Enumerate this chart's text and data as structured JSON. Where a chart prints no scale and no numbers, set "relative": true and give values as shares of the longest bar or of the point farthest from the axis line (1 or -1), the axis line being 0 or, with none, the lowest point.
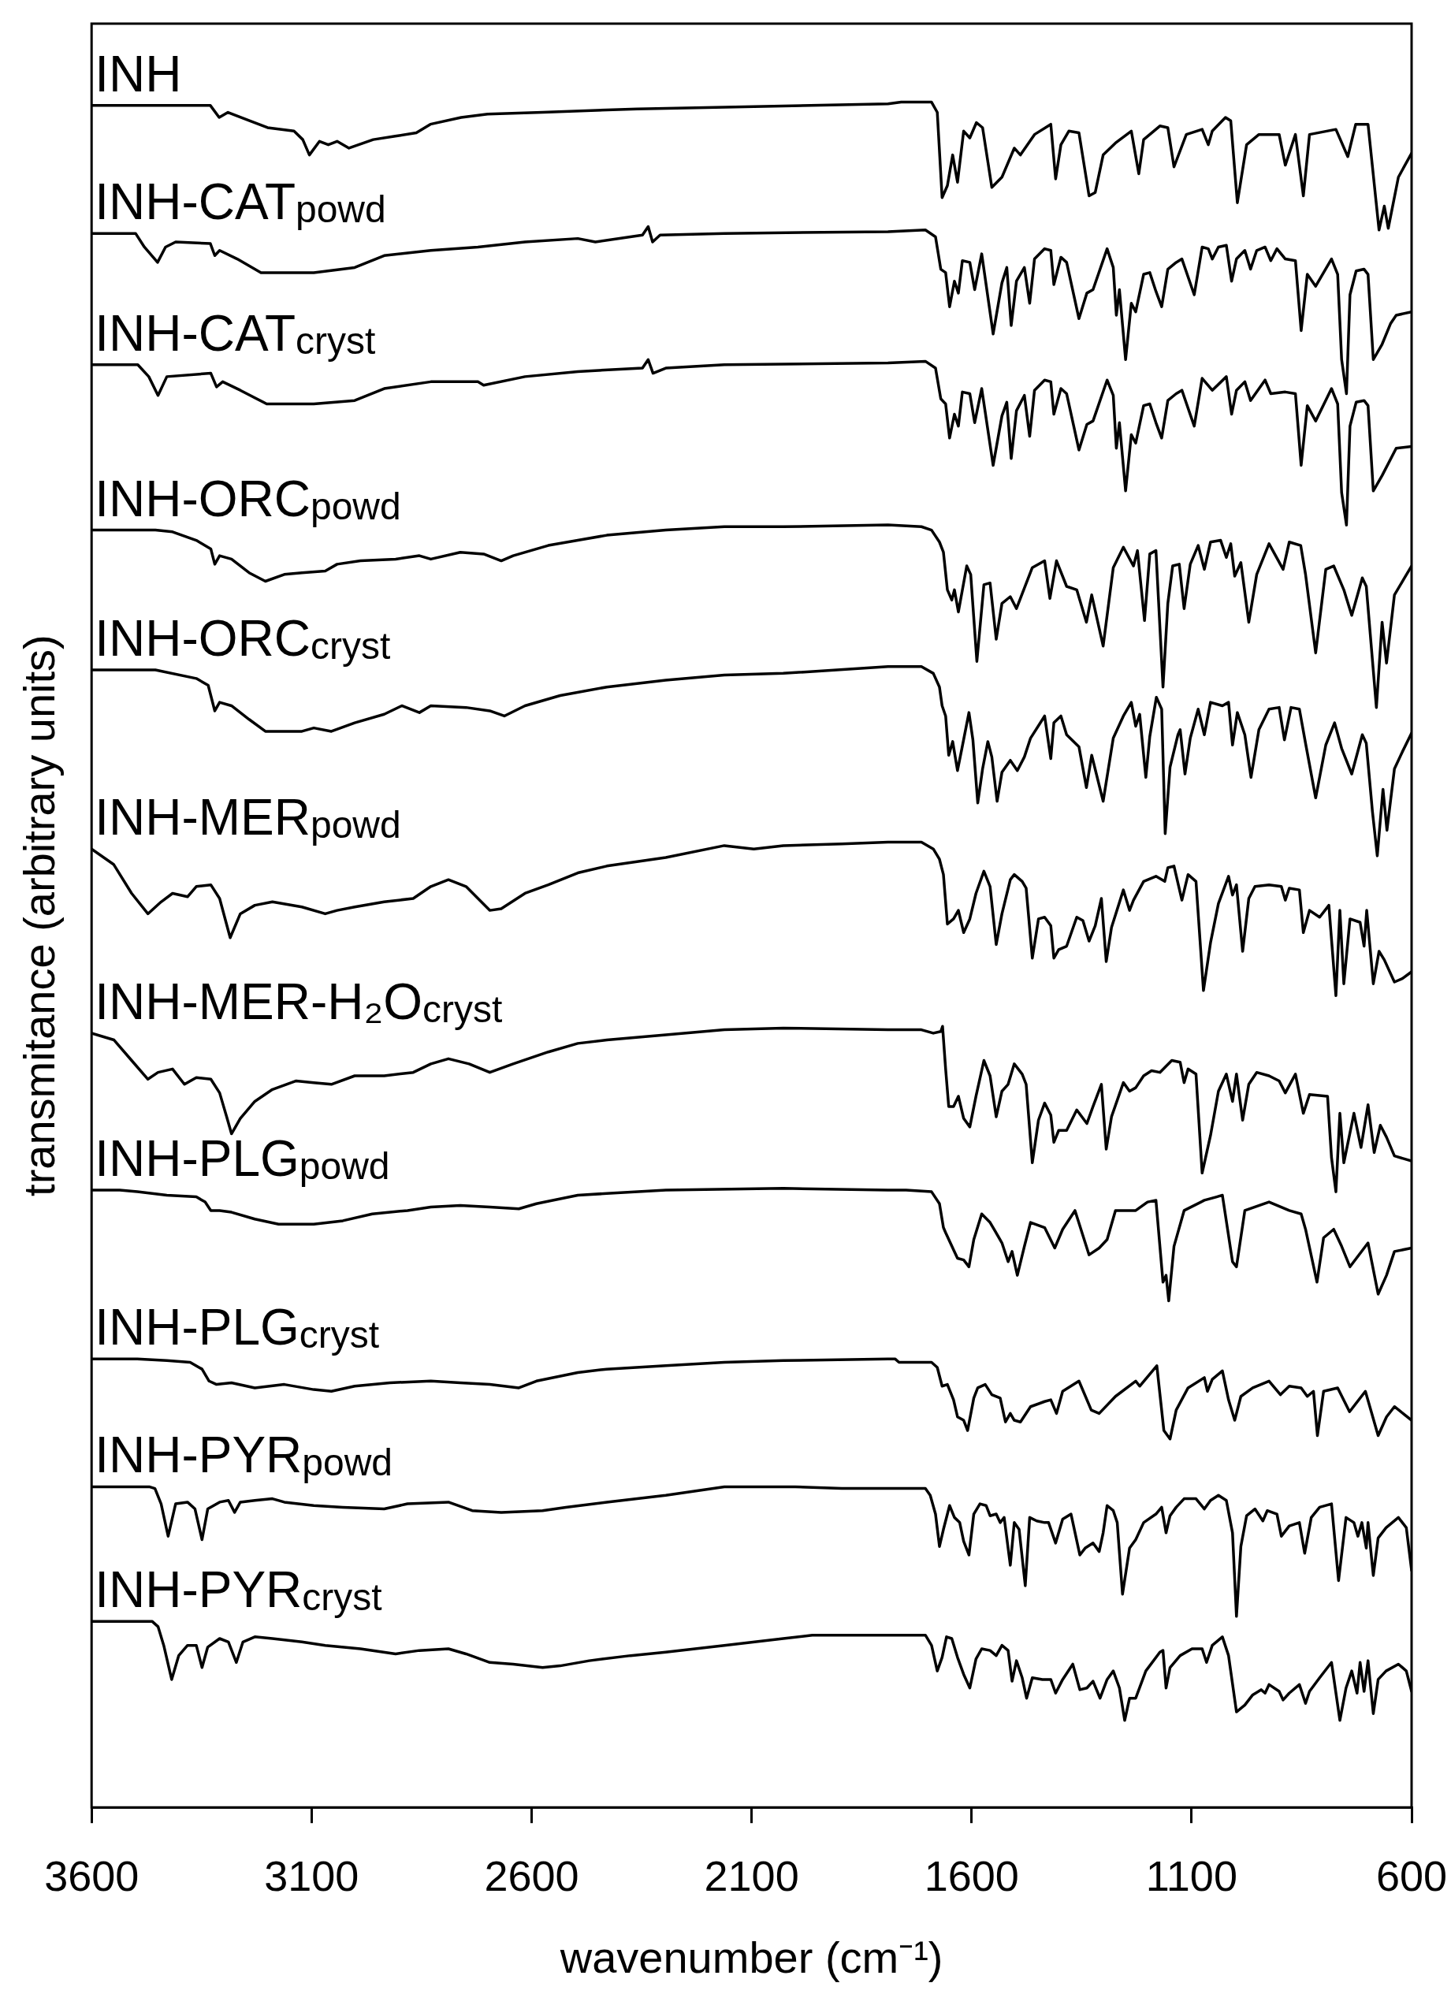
{
  "chart_data": {
    "type": "line",
    "xlabel": "wavenumber (cm⁻¹)",
    "ylabel": "transmitance (arbitrary units)",
    "xlim": [
      3600,
      600
    ],
    "xticks": [
      3600,
      3100,
      2600,
      2100,
      1600,
      1100,
      600
    ],
    "relative": true,
    "line_style": "solid",
    "series": [
      {
        "name": "INH",
        "color": "#000000",
        "x": [
          3600,
          3330,
          3310,
          3290,
          3240,
          3200,
          3140,
          3120,
          3105,
          3082,
          3062,
          3042,
          3015,
          2960,
          2910,
          2862,
          2830,
          2760,
          2700,
          2575,
          2360,
          2160,
          1790,
          1760,
          1691,
          1678,
          1667,
          1655,
          1643,
          1632,
          1618,
          1604,
          1589,
          1575,
          1554,
          1531,
          1503,
          1489,
          1457,
          1420,
          1409,
          1397,
          1379,
          1356,
          1333,
          1319,
          1301,
          1273,
          1237,
          1220,
          1209,
          1172,
          1154,
          1140,
          1112,
          1076,
          1062,
          1053,
          1023,
          1011,
          996,
          975,
          947,
          901,
          887,
          864,
          846,
          832,
          772,
          745,
          727,
          699,
          674,
          662,
          653,
          630,
          600
        ],
        "values": [
          0.998,
          0.998,
          0.991,
          0.994,
          0.989,
          0.985,
          0.983,
          0.978,
          0.969,
          0.977,
          0.975,
          0.977,
          0.973,
          0.978,
          0.98,
          0.982,
          0.987,
          0.991,
          0.993,
          0.994,
          0.996,
          0.997,
          0.999,
          1,
          1,
          0.994,
          0.944,
          0.951,
          0.969,
          0.953,
          0.983,
          0.979,
          0.988,
          0.985,
          0.95,
          0.956,
          0.973,
          0.969,
          0.981,
          0.987,
          0.955,
          0.975,
          0.983,
          0.982,
          0.945,
          0.947,
          0.969,
          0.976,
          0.983,
          0.958,
          0.978,
          0.986,
          0.985,
          0.962,
          0.981,
          0.984,
          0.975,
          0.983,
          0.991,
          0.989,
          0.941,
          0.975,
          0.981,
          0.981,
          0.963,
          0.981,
          0.945,
          0.981,
          0.984,
          0.968,
          0.987,
          0.987,
          0.925,
          0.939,
          0.926,
          0.956,
          0.97
        ]
      },
      {
        "name": "INH-CAT$_{powd}$",
        "color": "#000000",
        "x": [
          3600,
          3500,
          3480,
          3450,
          3432,
          3409,
          3330,
          3320,
          3309,
          3269,
          3215,
          3095,
          3002,
          2935,
          2829,
          2722,
          2615,
          2495,
          2455,
          2348,
          2335,
          2325,
          2308,
          2162,
          1790,
          1705,
          1682,
          1670,
          1659,
          1650,
          1639,
          1630,
          1621,
          1604,
          1593,
          1577,
          1551,
          1531,
          1520,
          1510,
          1498,
          1480,
          1468,
          1457,
          1434,
          1420,
          1413,
          1397,
          1384,
          1356,
          1338,
          1324,
          1292,
          1278,
          1271,
          1264,
          1250,
          1237,
          1227,
          1209,
          1195,
          1181,
          1168,
          1154,
          1135,
          1122,
          1094,
          1076,
          1062,
          1053,
          1039,
          1021,
          1009,
          998,
          979,
          966,
          952,
          933,
          920,
          906,
          887,
          864,
          851,
          837,
          818,
          782,
          768,
          759,
          748,
          740,
          726,
          708,
          699,
          687,
          667,
          648,
          635,
          600
        ],
        "values": [
          0.923,
          0.923,
          0.915,
          0.906,
          0.915,
          0.918,
          0.917,
          0.91,
          0.913,
          0.908,
          0.9,
          0.9,
          0.903,
          0.91,
          0.913,
          0.915,
          0.918,
          0.92,
          0.918,
          0.922,
          0.927,
          0.918,
          0.922,
          0.923,
          0.924,
          0.925,
          0.921,
          0.902,
          0.9,
          0.88,
          0.895,
          0.888,
          0.907,
          0.906,
          0.89,
          0.911,
          0.864,
          0.894,
          0.903,
          0.869,
          0.895,
          0.903,
          0.882,
          0.908,
          0.914,
          0.913,
          0.893,
          0.909,
          0.906,
          0.873,
          0.888,
          0.89,
          0.914,
          0.903,
          0.875,
          0.89,
          0.849,
          0.882,
          0.877,
          0.899,
          0.9,
          0.889,
          0.88,
          0.902,
          0.906,
          0.908,
          0.887,
          0.915,
          0.914,
          0.908,
          0.915,
          0.916,
          0.895,
          0.908,
          0.913,
          0.902,
          0.913,
          0.915,
          0.907,
          0.914,
          0.908,
          0.907,
          0.866,
          0.899,
          0.892,
          0.908,
          0.899,
          0.849,
          0.829,
          0.887,
          0.901,
          0.902,
          0.899,
          0.849,
          0.858,
          0.87,
          0.875,
          0.877
        ]
      },
      {
        "name": "INH-CAT$_{cryst}$",
        "color": "#000000",
        "x": [
          3600,
          3495,
          3470,
          3449,
          3429,
          3329,
          3316,
          3302,
          3262,
          3202,
          3095,
          3002,
          2935,
          2829,
          2722,
          2709,
          2615,
          2495,
          2348,
          2335,
          2324,
          2295,
          2162,
          1790,
          1705,
          1682,
          1670,
          1659,
          1650,
          1639,
          1630,
          1621,
          1604,
          1593,
          1577,
          1551,
          1531,
          1520,
          1510,
          1498,
          1480,
          1468,
          1457,
          1434,
          1420,
          1413,
          1397,
          1384,
          1356,
          1338,
          1324,
          1292,
          1278,
          1271,
          1264,
          1250,
          1237,
          1227,
          1209,
          1195,
          1181,
          1168,
          1154,
          1135,
          1122,
          1094,
          1076,
          1053,
          1021,
          1009,
          998,
          979,
          966,
          933,
          920,
          887,
          864,
          851,
          837,
          818,
          782,
          768,
          759,
          748,
          740,
          726,
          708,
          699,
          687,
          667,
          635,
          600
        ],
        "values": [
          0.846,
          0.846,
          0.839,
          0.828,
          0.839,
          0.841,
          0.833,
          0.836,
          0.831,
          0.823,
          0.823,
          0.825,
          0.832,
          0.836,
          0.836,
          0.834,
          0.839,
          0.842,
          0.844,
          0.849,
          0.841,
          0.844,
          0.846,
          0.847,
          0.848,
          0.844,
          0.826,
          0.823,
          0.803,
          0.817,
          0.81,
          0.83,
          0.829,
          0.812,
          0.832,
          0.787,
          0.816,
          0.824,
          0.791,
          0.819,
          0.828,
          0.804,
          0.831,
          0.837,
          0.836,
          0.817,
          0.832,
          0.829,
          0.796,
          0.811,
          0.813,
          0.837,
          0.828,
          0.797,
          0.812,
          0.772,
          0.805,
          0.8,
          0.822,
          0.823,
          0.812,
          0.803,
          0.825,
          0.829,
          0.831,
          0.81,
          0.838,
          0.831,
          0.839,
          0.817,
          0.831,
          0.836,
          0.825,
          0.837,
          0.829,
          0.83,
          0.829,
          0.787,
          0.822,
          0.813,
          0.832,
          0.823,
          0.771,
          0.752,
          0.81,
          0.824,
          0.825,
          0.822,
          0.772,
          0.781,
          0.797,
          0.798
        ]
      },
      {
        "name": "INH-ORC$_{powd}$",
        "color": "#000000",
        "x": [
          3600,
          3455,
          3416,
          3362,
          3329,
          3320,
          3309,
          3282,
          3242,
          3205,
          3162,
          3122,
          3069,
          3042,
          2989,
          2909,
          2855,
          2829,
          2762,
          2709,
          2669,
          2642,
          2562,
          2495,
          2429,
          2295,
          2162,
          2028,
          1790,
          1714,
          1691,
          1673,
          1664,
          1655,
          1645,
          1639,
          1630,
          1611,
          1602,
          1588,
          1572,
          1558,
          1544,
          1531,
          1512,
          1498,
          1480,
          1462,
          1434,
          1422,
          1407,
          1384,
          1361,
          1339,
          1327,
          1301,
          1278,
          1255,
          1232,
          1223,
          1207,
          1195,
          1181,
          1165,
          1154,
          1143,
          1128,
          1117,
          1103,
          1085,
          1071,
          1057,
          1034,
          1021,
          1011,
          1002,
          988,
          970,
          952,
          924,
          892,
          878,
          852,
          841,
          818,
          795,
          777,
          754,
          736,
          712,
          703,
          680,
          667,
          657,
          639,
          616,
          600
        ],
        "values": [
          0.749,
          0.749,
          0.748,
          0.743,
          0.738,
          0.729,
          0.734,
          0.732,
          0.724,
          0.719,
          0.723,
          0.724,
          0.725,
          0.729,
          0.731,
          0.732,
          0.734,
          0.732,
          0.736,
          0.735,
          0.731,
          0.734,
          0.74,
          0.743,
          0.746,
          0.749,
          0.751,
          0.751,
          0.752,
          0.751,
          0.749,
          0.742,
          0.736,
          0.714,
          0.708,
          0.714,
          0.701,
          0.728,
          0.723,
          0.672,
          0.717,
          0.718,
          0.685,
          0.706,
          0.71,
          0.703,
          0.715,
          0.727,
          0.731,
          0.709,
          0.731,
          0.716,
          0.714,
          0.695,
          0.711,
          0.681,
          0.727,
          0.739,
          0.728,
          0.737,
          0.696,
          0.735,
          0.737,
          0.657,
          0.706,
          0.728,
          0.729,
          0.703,
          0.729,
          0.74,
          0.726,
          0.742,
          0.743,
          0.733,
          0.741,
          0.722,
          0.73,
          0.695,
          0.723,
          0.741,
          0.726,
          0.742,
          0.74,
          0.723,
          0.677,
          0.726,
          0.728,
          0.714,
          0.699,
          0.721,
          0.716,
          0.645,
          0.695,
          0.671,
          0.711,
          0.721,
          0.728
        ]
      },
      {
        "name": "INH-ORC$_{cryst}$",
        "color": "#000000",
        "x": [
          3600,
          3455,
          3362,
          3335,
          3320,
          3309,
          3282,
          3242,
          3205,
          3122,
          3095,
          3055,
          3002,
          2935,
          2895,
          2855,
          2829,
          2749,
          2695,
          2662,
          2615,
          2535,
          2429,
          2295,
          2162,
          2028,
          1790,
          1714,
          1687,
          1673,
          1667,
          1659,
          1652,
          1643,
          1632,
          1622,
          1606,
          1597,
          1586,
          1575,
          1563,
          1554,
          1542,
          1531,
          1512,
          1496,
          1480,
          1466,
          1434,
          1420,
          1413,
          1397,
          1384,
          1356,
          1339,
          1327,
          1301,
          1278,
          1255,
          1237,
          1227,
          1218,
          1204,
          1195,
          1180,
          1168,
          1160,
          1149,
          1131,
          1126,
          1115,
          1103,
          1085,
          1071,
          1057,
          1030,
          1016,
          1007,
          996,
          979,
          965,
          947,
          924,
          901,
          889,
          874,
          855,
          841,
          818,
          795,
          775,
          759,
          736,
          712,
          703,
          689,
          678,
          665,
          656,
          639,
          621,
          600
        ],
        "values": [
          0.667,
          0.667,
          0.662,
          0.658,
          0.643,
          0.648,
          0.646,
          0.638,
          0.631,
          0.631,
          0.633,
          0.631,
          0.636,
          0.641,
          0.646,
          0.642,
          0.646,
          0.645,
          0.643,
          0.64,
          0.646,
          0.652,
          0.657,
          0.661,
          0.664,
          0.665,
          0.669,
          0.669,
          0.665,
          0.657,
          0.646,
          0.64,
          0.617,
          0.625,
          0.608,
          0.621,
          0.642,
          0.626,
          0.589,
          0.609,
          0.625,
          0.616,
          0.59,
          0.607,
          0.614,
          0.608,
          0.616,
          0.627,
          0.64,
          0.615,
          0.636,
          0.64,
          0.629,
          0.622,
          0.598,
          0.617,
          0.59,
          0.627,
          0.64,
          0.648,
          0.634,
          0.641,
          0.604,
          0.628,
          0.651,
          0.644,
          0.571,
          0.61,
          0.629,
          0.632,
          0.606,
          0.627,
          0.644,
          0.629,
          0.648,
          0.646,
          0.648,
          0.623,
          0.642,
          0.629,
          0.604,
          0.632,
          0.644,
          0.645,
          0.626,
          0.645,
          0.644,
          0.624,
          0.592,
          0.623,
          0.636,
          0.621,
          0.606,
          0.629,
          0.624,
          0.584,
          0.558,
          0.597,
          0.573,
          0.609,
          0.619,
          0.63
        ]
      },
      {
        "name": "INH-MER$_{powd}$",
        "color": "#000000",
        "x": [
          3600,
          3550,
          3509,
          3472,
          3442,
          3416,
          3382,
          3362,
          3329,
          3309,
          3285,
          3262,
          3229,
          3189,
          3122,
          3069,
          3042,
          3002,
          2935,
          2869,
          2829,
          2789,
          2749,
          2695,
          2669,
          2615,
          2562,
          2495,
          2429,
          2295,
          2162,
          2095,
          2028,
          1895,
          1790,
          1714,
          1687,
          1673,
          1664,
          1655,
          1641,
          1630,
          1618,
          1604,
          1590,
          1572,
          1558,
          1544,
          1531,
          1512,
          1503,
          1485,
          1476,
          1462,
          1448,
          1434,
          1420,
          1413,
          1402,
          1384,
          1361,
          1347,
          1333,
          1319,
          1305,
          1294,
          1282,
          1255,
          1241,
          1232,
          1209,
          1181,
          1161,
          1154,
          1140,
          1122,
          1108,
          1090,
          1073,
          1057,
          1039,
          1016,
          1007,
          998,
          984,
          970,
          956,
          924,
          896,
          887,
          878,
          855,
          846,
          832,
          809,
          788,
          782,
          772,
          763,
          754,
          740,
          717,
          708,
          702,
          687,
          674,
          662,
          639,
          621,
          600
        ],
        "values": [
          0.562,
          0.553,
          0.536,
          0.524,
          0.531,
          0.536,
          0.534,
          0.54,
          0.541,
          0.533,
          0.51,
          0.524,
          0.529,
          0.531,
          0.528,
          0.524,
          0.526,
          0.528,
          0.531,
          0.533,
          0.54,
          0.544,
          0.54,
          0.526,
          0.527,
          0.536,
          0.541,
          0.548,
          0.552,
          0.557,
          0.564,
          0.562,
          0.564,
          0.565,
          0.566,
          0.566,
          0.562,
          0.556,
          0.547,
          0.518,
          0.521,
          0.526,
          0.513,
          0.521,
          0.536,
          0.549,
          0.54,
          0.506,
          0.524,
          0.544,
          0.547,
          0.543,
          0.539,
          0.498,
          0.521,
          0.522,
          0.517,
          0.498,
          0.503,
          0.505,
          0.522,
          0.52,
          0.508,
          0.517,
          0.533,
          0.496,
          0.516,
          0.538,
          0.526,
          0.532,
          0.543,
          0.546,
          0.543,
          0.551,
          0.552,
          0.532,
          0.547,
          0.543,
          0.479,
          0.507,
          0.53,
          0.546,
          0.535,
          0.541,
          0.502,
          0.533,
          0.54,
          0.541,
          0.54,
          0.532,
          0.539,
          0.538,
          0.513,
          0.526,
          0.522,
          0.529,
          0.509,
          0.476,
          0.526,
          0.483,
          0.521,
          0.519,
          0.505,
          0.526,
          0.483,
          0.502,
          0.497,
          0.484,
          0.486,
          0.49
        ]
      },
      {
        "name": "INH-MER-H₂O$_{cryst}$",
        "color": "#000000",
        "x": [
          3600,
          3549,
          3509,
          3472,
          3449,
          3416,
          3389,
          3362,
          3329,
          3309,
          3293,
          3282,
          3262,
          3229,
          3189,
          3135,
          3095,
          3055,
          3002,
          2935,
          2869,
          2829,
          2789,
          2742,
          2695,
          2642,
          2562,
          2495,
          2429,
          2295,
          2162,
          2028,
          1790,
          1714,
          1687,
          1670,
          1666,
          1659,
          1652,
          1641,
          1630,
          1618,
          1604,
          1590,
          1572,
          1558,
          1544,
          1531,
          1517,
          1503,
          1485,
          1476,
          1462,
          1448,
          1434,
          1420,
          1413,
          1402,
          1384,
          1361,
          1338,
          1324,
          1305,
          1294,
          1282,
          1255,
          1241,
          1227,
          1209,
          1191,
          1172,
          1145,
          1126,
          1117,
          1108,
          1090,
          1076,
          1057,
          1039,
          1021,
          1007,
          998,
          984,
          970,
          952,
          924,
          901,
          887,
          864,
          846,
          832,
          791,
          782,
          772,
          763,
          754,
          731,
          715,
          699,
          685,
          671,
          657,
          639,
          600
        ],
        "values": [
          0.454,
          0.45,
          0.438,
          0.427,
          0.431,
          0.433,
          0.424,
          0.428,
          0.427,
          0.419,
          0.405,
          0.395,
          0.404,
          0.414,
          0.421,
          0.426,
          0.425,
          0.424,
          0.429,
          0.429,
          0.431,
          0.436,
          0.439,
          0.436,
          0.431,
          0.436,
          0.443,
          0.448,
          0.45,
          0.453,
          0.456,
          0.457,
          0.456,
          0.456,
          0.454,
          0.455,
          0.458,
          0.433,
          0.411,
          0.411,
          0.417,
          0.404,
          0.399,
          0.417,
          0.438,
          0.429,
          0.405,
          0.42,
          0.424,
          0.436,
          0.43,
          0.424,
          0.378,
          0.403,
          0.413,
          0.406,
          0.39,
          0.397,
          0.397,
          0.409,
          0.401,
          0.411,
          0.424,
          0.386,
          0.405,
          0.425,
          0.42,
          0.422,
          0.429,
          0.432,
          0.431,
          0.438,
          0.437,
          0.425,
          0.433,
          0.43,
          0.372,
          0.394,
          0.42,
          0.43,
          0.414,
          0.43,
          0.403,
          0.424,
          0.431,
          0.429,
          0.426,
          0.419,
          0.43,
          0.407,
          0.418,
          0.417,
          0.381,
          0.361,
          0.407,
          0.378,
          0.407,
          0.387,
          0.412,
          0.384,
          0.4,
          0.393,
          0.382,
          0.379
        ]
      },
      {
        "name": "INH-PLG$_{powd}$",
        "color": "#000000",
        "x": [
          3600,
          3536,
          3496,
          3429,
          3362,
          3342,
          3329,
          3309,
          3282,
          3229,
          3175,
          3095,
          3029,
          2962,
          2882,
          2829,
          2762,
          2695,
          2629,
          2589,
          2495,
          2429,
          2295,
          2028,
          1790,
          1749,
          1691,
          1673,
          1664,
          1659,
          1641,
          1632,
          1618,
          1606,
          1595,
          1577,
          1558,
          1549,
          1531,
          1517,
          1508,
          1496,
          1480,
          1466,
          1434,
          1411,
          1393,
          1365,
          1333,
          1310,
          1292,
          1273,
          1227,
          1200,
          1181,
          1165,
          1158,
          1152,
          1140,
          1117,
          1071,
          1043,
          1030,
          1007,
          998,
          979,
          924,
          878,
          851,
          841,
          815,
          800,
          777,
          759,
          740,
          699,
          676,
          657,
          639,
          600
        ],
        "values": [
          0.362,
          0.362,
          0.361,
          0.359,
          0.358,
          0.355,
          0.35,
          0.35,
          0.349,
          0.345,
          0.342,
          0.342,
          0.344,
          0.348,
          0.35,
          0.352,
          0.353,
          0.352,
          0.351,
          0.354,
          0.359,
          0.36,
          0.362,
          0.363,
          0.362,
          0.362,
          0.361,
          0.354,
          0.34,
          0.337,
          0.327,
          0.322,
          0.321,
          0.317,
          0.333,
          0.348,
          0.343,
          0.339,
          0.331,
          0.32,
          0.326,
          0.312,
          0.329,
          0.343,
          0.34,
          0.328,
          0.339,
          0.35,
          0.324,
          0.328,
          0.333,
          0.35,
          0.35,
          0.355,
          0.356,
          0.308,
          0.312,
          0.297,
          0.329,
          0.35,
          0.356,
          0.358,
          0.359,
          0.32,
          0.317,
          0.35,
          0.355,
          0.35,
          0.348,
          0.339,
          0.308,
          0.334,
          0.339,
          0.329,
          0.317,
          0.331,
          0.301,
          0.312,
          0.326,
          0.328
        ]
      },
      {
        "name": "INH-PLG$_{cryst}$",
        "color": "#000000",
        "x": [
          3600,
          3496,
          3429,
          3376,
          3349,
          3333,
          3316,
          3282,
          3229,
          3162,
          3095,
          3055,
          3002,
          2922,
          2829,
          2762,
          2695,
          2629,
          2589,
          2495,
          2429,
          2295,
          2162,
          2028,
          1790,
          1774,
          1765,
          1691,
          1678,
          1667,
          1655,
          1641,
          1632,
          1618,
          1609,
          1595,
          1586,
          1569,
          1554,
          1535,
          1523,
          1512,
          1503,
          1489,
          1466,
          1434,
          1420,
          1407,
          1393,
          1356,
          1328,
          1310,
          1273,
          1227,
          1218,
          1179,
          1163,
          1149,
          1135,
          1108,
          1071,
          1064,
          1053,
          1030,
          1016,
          1002,
          988,
          961,
          924,
          898,
          878,
          851,
          837,
          823,
          814,
          800,
          768,
          741,
          705,
          676,
          657,
          639,
          600
        ],
        "values": [
          0.263,
          0.263,
          0.262,
          0.261,
          0.257,
          0.25,
          0.248,
          0.249,
          0.246,
          0.248,
          0.245,
          0.244,
          0.247,
          0.249,
          0.25,
          0.249,
          0.248,
          0.246,
          0.25,
          0.255,
          0.257,
          0.259,
          0.261,
          0.262,
          0.263,
          0.263,
          0.261,
          0.261,
          0.258,
          0.247,
          0.248,
          0.239,
          0.229,
          0.227,
          0.221,
          0.24,
          0.246,
          0.248,
          0.242,
          0.24,
          0.226,
          0.231,
          0.227,
          0.226,
          0.235,
          0.238,
          0.239,
          0.231,
          0.244,
          0.25,
          0.233,
          0.231,
          0.241,
          0.25,
          0.247,
          0.259,
          0.221,
          0.216,
          0.233,
          0.246,
          0.252,
          0.244,
          0.251,
          0.256,
          0.239,
          0.227,
          0.241,
          0.246,
          0.25,
          0.242,
          0.247,
          0.246,
          0.241,
          0.244,
          0.218,
          0.244,
          0.246,
          0.232,
          0.244,
          0.218,
          0.229,
          0.235,
          0.227
        ]
      },
      {
        "name": "INH-PYR$_{powd}$",
        "color": "#000000",
        "x": [
          3600,
          3469,
          3456,
          3442,
          3426,
          3409,
          3382,
          3365,
          3349,
          3336,
          3309,
          3289,
          3275,
          3262,
          3229,
          3189,
          3162,
          3095,
          3029,
          2935,
          2882,
          2789,
          2735,
          2669,
          2575,
          2522,
          2429,
          2295,
          2162,
          2001,
          1895,
          1790,
          1705,
          1694,
          1682,
          1673,
          1664,
          1650,
          1639,
          1627,
          1618,
          1606,
          1595,
          1581,
          1567,
          1558,
          1544,
          1535,
          1526,
          1512,
          1503,
          1492,
          1478,
          1468,
          1452,
          1434,
          1425,
          1409,
          1393,
          1374,
          1354,
          1342,
          1324,
          1310,
          1301,
          1292,
          1278,
          1269,
          1257,
          1241,
          1227,
          1209,
          1181,
          1168,
          1158,
          1149,
          1135,
          1117,
          1090,
          1071,
          1057,
          1039,
          1021,
          1007,
          998,
          988,
          975,
          956,
          938,
          928,
          906,
          896,
          878,
          855,
          843,
          828,
          809,
          782,
          766,
          749,
          731,
          722,
          713,
          703,
          699,
          687,
          676,
          658,
          630,
          612,
          600
        ],
        "values": [
          0.188,
          0.188,
          0.187,
          0.178,
          0.159,
          0.178,
          0.179,
          0.175,
          0.157,
          0.175,
          0.179,
          0.18,
          0.173,
          0.179,
          0.18,
          0.181,
          0.179,
          0.177,
          0.176,
          0.175,
          0.178,
          0.179,
          0.174,
          0.173,
          0.174,
          0.176,
          0.179,
          0.183,
          0.188,
          0.188,
          0.187,
          0.187,
          0.187,
          0.183,
          0.172,
          0.153,
          0.163,
          0.177,
          0.17,
          0.167,
          0.156,
          0.148,
          0.172,
          0.178,
          0.177,
          0.171,
          0.172,
          0.167,
          0.17,
          0.142,
          0.167,
          0.163,
          0.13,
          0.17,
          0.168,
          0.167,
          0.167,
          0.155,
          0.169,
          0.172,
          0.148,
          0.152,
          0.155,
          0.15,
          0.161,
          0.177,
          0.174,
          0.167,
          0.125,
          0.152,
          0.157,
          0.167,
          0.172,
          0.176,
          0.161,
          0.171,
          0.176,
          0.181,
          0.181,
          0.175,
          0.18,
          0.183,
          0.18,
          0.161,
          0.112,
          0.153,
          0.171,
          0.175,
          0.168,
          0.174,
          0.172,
          0.159,
          0.165,
          0.167,
          0.149,
          0.17,
          0.176,
          0.178,
          0.133,
          0.17,
          0.167,
          0.159,
          0.167,
          0.152,
          0.167,
          0.136,
          0.158,
          0.164,
          0.17,
          0.164,
          0.139
        ]
      },
      {
        "name": "INH-PYR$_{cryst}$",
        "color": "#000000",
        "x": [
          3600,
          3462,
          3449,
          3436,
          3418,
          3402,
          3382,
          3362,
          3349,
          3336,
          3309,
          3289,
          3271,
          3256,
          3229,
          3189,
          3122,
          3069,
          2989,
          2909,
          2855,
          2789,
          2749,
          2695,
          2642,
          2575,
          2535,
          2469,
          2375,
          2295,
          2162,
          2028,
          1962,
          1790,
          1705,
          1691,
          1678,
          1667,
          1657,
          1645,
          1632,
          1618,
          1604,
          1590,
          1577,
          1558,
          1544,
          1531,
          1517,
          1508,
          1498,
          1485,
          1475,
          1462,
          1439,
          1420,
          1409,
          1393,
          1370,
          1354,
          1338,
          1324,
          1308,
          1292,
          1278,
          1264,
          1252,
          1241,
          1227,
          1204,
          1172,
          1165,
          1158,
          1149,
          1126,
          1099,
          1076,
          1066,
          1053,
          1030,
          1016,
          998,
          979,
          961,
          942,
          933,
          924,
          901,
          892,
          878,
          855,
          841,
          832,
          809,
          782,
          763,
          749,
          736,
          724,
          717,
          708,
          699,
          687,
          676,
          658,
          630,
          612,
          600
        ],
        "values": [
          0.109,
          0.109,
          0.106,
          0.095,
          0.075,
          0.089,
          0.095,
          0.095,
          0.082,
          0.094,
          0.099,
          0.097,
          0.085,
          0.097,
          0.1,
          0.099,
          0.097,
          0.095,
          0.093,
          0.09,
          0.092,
          0.093,
          0.09,
          0.085,
          0.084,
          0.082,
          0.083,
          0.086,
          0.089,
          0.091,
          0.095,
          0.099,
          0.101,
          0.101,
          0.101,
          0.095,
          0.08,
          0.088,
          0.1,
          0.099,
          0.088,
          0.078,
          0.07,
          0.087,
          0.093,
          0.092,
          0.089,
          0.095,
          0.092,
          0.074,
          0.086,
          0.076,
          0.064,
          0.076,
          0.075,
          0.075,
          0.067,
          0.075,
          0.084,
          0.069,
          0.07,
          0.074,
          0.064,
          0.075,
          0.08,
          0.07,
          0.051,
          0.064,
          0.064,
          0.08,
          0.091,
          0.092,
          0.07,
          0.082,
          0.089,
          0.093,
          0.093,
          0.085,
          0.095,
          0.1,
          0.089,
          0.056,
          0.06,
          0.066,
          0.069,
          0.067,
          0.072,
          0.068,
          0.063,
          0.067,
          0.072,
          0.061,
          0.068,
          0.076,
          0.085,
          0.051,
          0.07,
          0.08,
          0.067,
          0.085,
          0.068,
          0.086,
          0.055,
          0.075,
          0.08,
          0.084,
          0.08,
          0.068
        ]
      }
    ]
  }
}
